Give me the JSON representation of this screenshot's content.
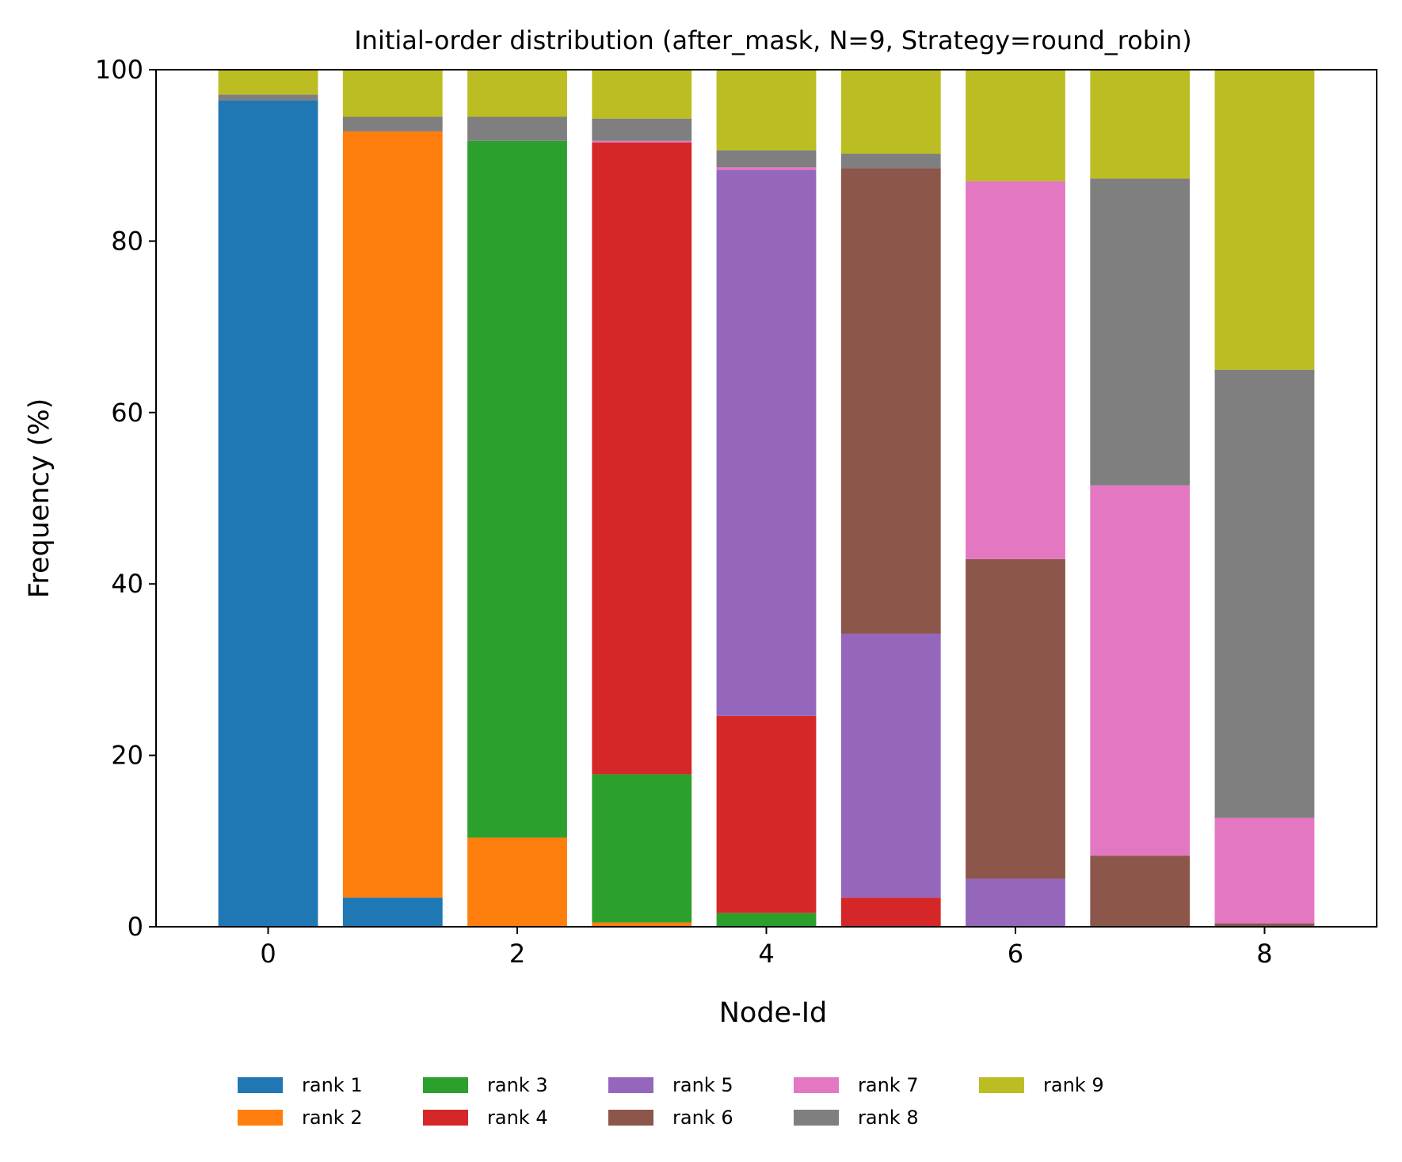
{
  "chart_data": {
    "type": "bar",
    "stacked": true,
    "title": "Initial-order distribution (after_mask, N=9, Strategy=round_robin)",
    "xlabel": "Node-Id",
    "ylabel": "Frequency (%)",
    "x": [
      0,
      1,
      2,
      3,
      4,
      5,
      6,
      7,
      8
    ],
    "xticks": [
      0,
      2,
      4,
      6,
      8
    ],
    "xlim": [
      -0.9,
      8.9
    ],
    "ylim": [
      0,
      100
    ],
    "yticks": [
      0,
      20,
      40,
      60,
      80,
      100
    ],
    "grid": false,
    "legend": {
      "placement": "bottom-center-outside",
      "columns": 6
    },
    "series": [
      {
        "name": "rank 1",
        "color": "#1f77b4",
        "values": [
          96.4,
          3.4,
          0,
          0,
          0,
          0,
          0,
          0,
          0
        ]
      },
      {
        "name": "rank 2",
        "color": "#ff7f0e",
        "values": [
          0,
          89.4,
          10.4,
          0.5,
          0,
          0,
          0,
          0,
          0
        ]
      },
      {
        "name": "rank 3",
        "color": "#2ca02c",
        "values": [
          0,
          0,
          81.3,
          17.3,
          1.6,
          0,
          0,
          0,
          0
        ]
      },
      {
        "name": "rank 4",
        "color": "#d62728",
        "values": [
          0,
          0,
          0,
          73.7,
          23.0,
          3.4,
          0,
          0,
          0
        ]
      },
      {
        "name": "rank 5",
        "color": "#9467bd",
        "values": [
          0,
          0,
          0,
          0,
          63.7,
          30.8,
          5.6,
          0,
          0
        ]
      },
      {
        "name": "rank 6",
        "color": "#8c564b",
        "values": [
          0,
          0,
          0,
          0,
          0,
          54.3,
          37.3,
          8.3,
          0.4
        ]
      },
      {
        "name": "rank 7",
        "color": "#e377c2",
        "values": [
          0,
          0,
          0,
          0.2,
          0.3,
          0,
          44.1,
          43.2,
          12.3
        ]
      },
      {
        "name": "rank 8",
        "color": "#7f7f7f",
        "values": [
          0.7,
          1.7,
          2.8,
          2.6,
          2.0,
          1.7,
          0,
          35.8,
          52.3
        ]
      },
      {
        "name": "rank 9",
        "color": "#bcbd22",
        "values": [
          2.9,
          5.5,
          5.5,
          5.7,
          9.4,
          9.8,
          13.0,
          12.7,
          35.0
        ]
      }
    ]
  }
}
